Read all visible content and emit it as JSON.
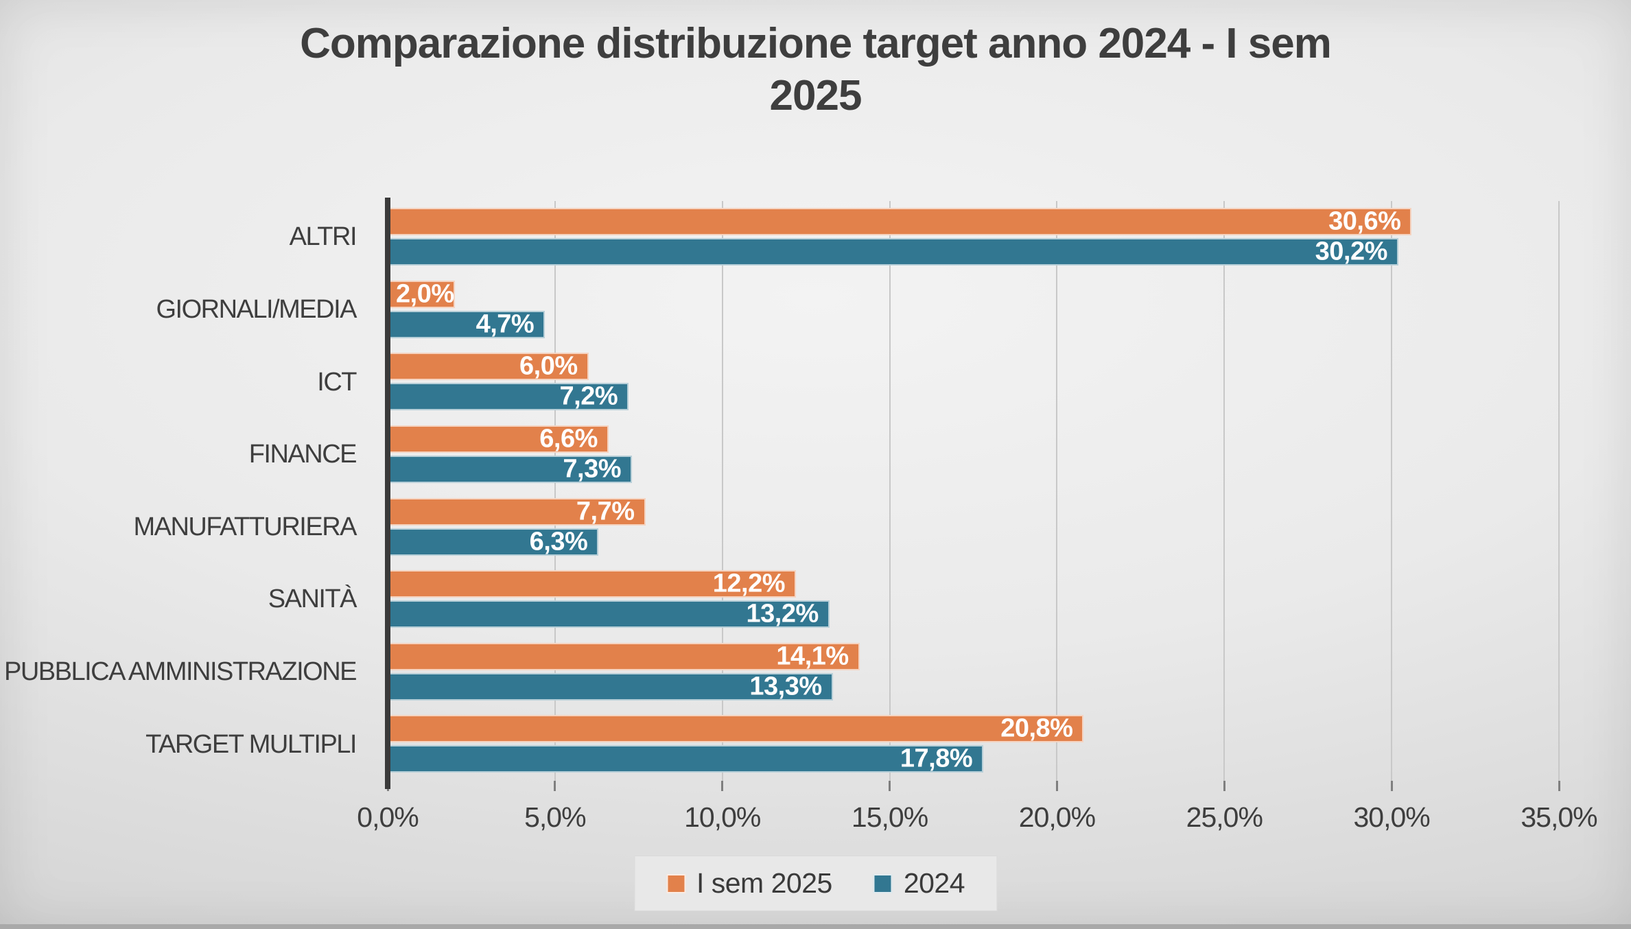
{
  "title_lines": [
    "Comparazione distribuzione target anno 2024 - I sem",
    "2025"
  ],
  "colors": {
    "series_1": "#e2814b",
    "series_2": "#327791",
    "title_text": "#3e3e3e",
    "bar_value_text": "#ffffff",
    "background": "#d9d9d9"
  },
  "chart_data": {
    "type": "bar",
    "orientation": "horizontal",
    "title": "Comparazione distribuzione target anno 2024 - I sem 2025",
    "categories": [
      "ALTRI",
      "GIORNALI/MEDIA",
      "ICT",
      "FINANCE",
      "MANUFATTURIERA",
      "SANITÀ",
      "PUBBLICA AMMINISTRAZIONE",
      "TARGET MULTIPLI"
    ],
    "series": [
      {
        "name": "I sem 2025",
        "color": "#e2814b",
        "values": [
          30.6,
          2.0,
          6.0,
          6.6,
          7.7,
          12.2,
          14.1,
          20.8
        ],
        "labels": [
          "30,6%",
          "2,0%",
          "6,0%",
          "6,6%",
          "7,7%",
          "12,2%",
          "14,1%",
          "20,8%"
        ]
      },
      {
        "name": "2024",
        "color": "#327791",
        "values": [
          30.2,
          4.7,
          7.2,
          7.3,
          6.3,
          13.2,
          13.3,
          17.8
        ],
        "labels": [
          "30,2%",
          "4,7%",
          "7,2%",
          "7,3%",
          "6,3%",
          "13,2%",
          "13,3%",
          "17,8%"
        ]
      }
    ],
    "x_axis": {
      "min": 0,
      "max": 35,
      "tick_step": 5,
      "tick_labels": [
        "0,0%",
        "5,0%",
        "10,0%",
        "15,0%",
        "20,0%",
        "25,0%",
        "30,0%",
        "35,0%"
      ]
    },
    "grid": true,
    "legend_position": "bottom",
    "data_labels": "inside-end"
  }
}
